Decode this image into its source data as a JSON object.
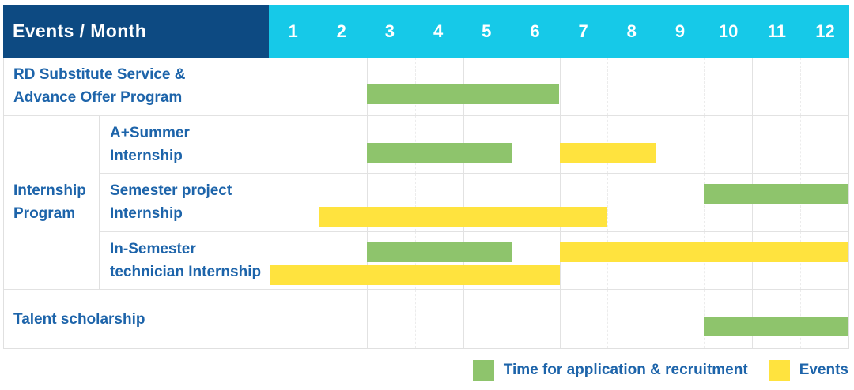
{
  "header": {
    "title": "Events / Month",
    "months": [
      "1",
      "2",
      "3",
      "4",
      "5",
      "6",
      "7",
      "8",
      "9",
      "10",
      "11",
      "12"
    ]
  },
  "colors": {
    "header_navy": "#0d4a82",
    "header_cyan": "#16c9e8",
    "application_green": "#8ec46c",
    "event_yellow": "#ffe33e",
    "label_blue": "#1d64aa",
    "grid_line": "#e2e2e2"
  },
  "legend": {
    "items": [
      {
        "kind": "application",
        "label": "Time for application & recruitment"
      },
      {
        "kind": "event",
        "label": "Events"
      }
    ]
  },
  "chart_data": {
    "type": "gantt",
    "title": "Events / Month",
    "x_unit": "month",
    "x_range": [
      1,
      12
    ],
    "group_label": "Internship Program",
    "group_label_lines": [
      "Internship",
      "Program"
    ],
    "legend": {
      "application": "Time for application & recruitment",
      "event": "Events"
    },
    "rows": [
      {
        "group": null,
        "label": "RD Substitute Service & Advance Offer Program",
        "label_lines": [
          "RD Substitute Service &",
          "Advance Offer Program"
        ],
        "bars": [
          {
            "kind": "application",
            "start_month": 3,
            "end_month": 6,
            "line": "single"
          }
        ]
      },
      {
        "group": "Internship Program",
        "label": "A+Summer Internship",
        "label_lines": [
          "A+Summer",
          "Internship"
        ],
        "bars": [
          {
            "kind": "application",
            "start_month": 3,
            "end_month": 5,
            "line": "single"
          },
          {
            "kind": "event",
            "start_month": 7,
            "end_month": 8,
            "line": "single"
          }
        ]
      },
      {
        "group": "Internship Program",
        "label": "Semester project Internship",
        "label_lines": [
          "Semester project",
          "Internship"
        ],
        "bars": [
          {
            "kind": "application",
            "start_month": 10,
            "end_month": 12,
            "line": "upper"
          },
          {
            "kind": "event",
            "start_month": 2,
            "end_month": 7,
            "line": "lower"
          }
        ]
      },
      {
        "group": "Internship Program",
        "label": "In-Semester technician Internship",
        "label_lines": [
          "In-Semester",
          "technician Internship"
        ],
        "bars": [
          {
            "kind": "application",
            "start_month": 3,
            "end_month": 5,
            "line": "upper"
          },
          {
            "kind": "event",
            "start_month": 7,
            "end_month": 12,
            "line": "upper"
          },
          {
            "kind": "event",
            "start_month": 1,
            "end_month": 6,
            "line": "lower"
          }
        ]
      },
      {
        "group": null,
        "label": "Talent scholarship",
        "label_lines": [
          "Talent scholarship"
        ],
        "bars": [
          {
            "kind": "application",
            "start_month": 10,
            "end_month": 12,
            "line": "single"
          }
        ]
      }
    ]
  }
}
